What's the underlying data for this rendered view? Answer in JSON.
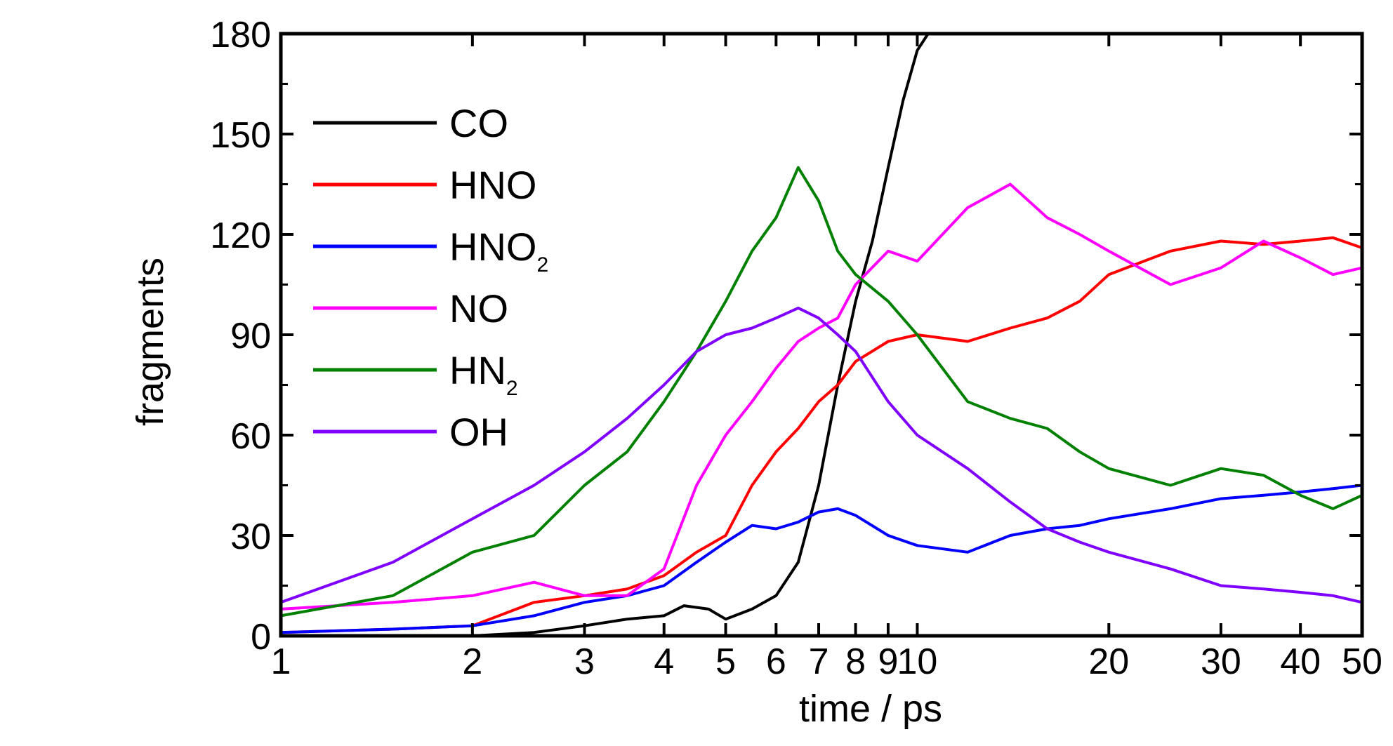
{
  "chart_data": {
    "type": "line",
    "xscale": "log",
    "xlabel": "time / ps",
    "ylabel": "fragments",
    "xlim": [
      1,
      50
    ],
    "ylim": [
      0,
      180
    ],
    "xticks": [
      1,
      2,
      3,
      4,
      5,
      6,
      7,
      8,
      9,
      10,
      20,
      30,
      40,
      50
    ],
    "xtick_labels": [
      "1",
      "2",
      "3",
      "4",
      "5",
      "6",
      "7",
      "8",
      "9",
      "10",
      "20",
      "30",
      "40",
      "50"
    ],
    "yticks": [
      0,
      30,
      60,
      90,
      120,
      150,
      180
    ],
    "ytick_labels": [
      "0",
      "30",
      "60",
      "90",
      "120",
      "150",
      "180"
    ],
    "legend_position": "upper-left",
    "grid": false,
    "series": [
      {
        "name": "CO",
        "label_main": "CO",
        "label_sub": "",
        "color": "#000000",
        "x": [
          1,
          1.5,
          2,
          2.5,
          3,
          3.5,
          4,
          4.3,
          4.7,
          5,
          5.5,
          6,
          6.5,
          7,
          7.5,
          8,
          8.5,
          9,
          9.5,
          10,
          10.4
        ],
        "y": [
          0,
          0,
          0,
          1,
          3,
          5,
          6,
          9,
          8,
          5,
          8,
          12,
          22,
          45,
          75,
          100,
          118,
          140,
          160,
          175,
          180
        ]
      },
      {
        "name": "HNO",
        "label_main": "HNO",
        "label_sub": "",
        "color": "#ff0000",
        "x": [
          1,
          1.5,
          2,
          2.5,
          3,
          3.5,
          4,
          4.5,
          5,
          5.5,
          6,
          6.5,
          7,
          7.5,
          8,
          9,
          10,
          12,
          14,
          16,
          18,
          20,
          25,
          30,
          35,
          40,
          45,
          50
        ],
        "y": [
          1,
          2,
          3,
          10,
          12,
          14,
          18,
          25,
          30,
          45,
          55,
          62,
          70,
          75,
          82,
          88,
          90,
          88,
          92,
          95,
          100,
          108,
          115,
          118,
          117,
          118,
          119,
          116
        ]
      },
      {
        "name": "HNO2",
        "label_main": "HNO",
        "label_sub": "2",
        "color": "#0000ff",
        "x": [
          1,
          1.5,
          2,
          2.5,
          3,
          3.5,
          4,
          4.5,
          5,
          5.5,
          6,
          6.5,
          7,
          7.5,
          8,
          9,
          10,
          12,
          14,
          16,
          18,
          20,
          25,
          30,
          35,
          40,
          45,
          50
        ],
        "y": [
          1,
          2,
          3,
          6,
          10,
          12,
          15,
          22,
          28,
          33,
          32,
          34,
          37,
          38,
          36,
          30,
          27,
          25,
          30,
          32,
          33,
          35,
          38,
          41,
          42,
          43,
          44,
          45
        ]
      },
      {
        "name": "NO",
        "label_main": "NO",
        "label_sub": "",
        "color": "#ff00ff",
        "x": [
          1,
          1.5,
          2,
          2.5,
          3,
          3.5,
          4,
          4.5,
          5,
          5.5,
          6,
          6.5,
          7,
          7.5,
          8,
          9,
          10,
          12,
          14,
          16,
          18,
          20,
          25,
          30,
          35,
          40,
          45,
          50
        ],
        "y": [
          8,
          10,
          12,
          16,
          12,
          12,
          20,
          45,
          60,
          70,
          80,
          88,
          92,
          95,
          105,
          115,
          112,
          128,
          135,
          125,
          120,
          115,
          105,
          110,
          118,
          113,
          108,
          110
        ]
      },
      {
        "name": "HN2",
        "label_main": "HN",
        "label_sub": "2",
        "color": "#008000",
        "x": [
          1,
          1.5,
          2,
          2.5,
          3,
          3.5,
          4,
          4.5,
          5,
          5.5,
          6,
          6.5,
          7,
          7.5,
          8,
          9,
          10,
          12,
          14,
          16,
          18,
          20,
          25,
          30,
          35,
          40,
          45,
          50
        ],
        "y": [
          6,
          12,
          25,
          30,
          45,
          55,
          70,
          85,
          100,
          115,
          125,
          140,
          130,
          115,
          108,
          100,
          90,
          70,
          65,
          62,
          55,
          50,
          45,
          50,
          48,
          42,
          38,
          42
        ]
      },
      {
        "name": "OH",
        "label_main": "OH",
        "label_sub": "",
        "color": "#8000ff",
        "x": [
          1,
          1.5,
          2,
          2.5,
          3,
          3.5,
          4,
          4.5,
          5,
          5.5,
          6,
          6.5,
          7,
          7.5,
          8,
          9,
          10,
          12,
          14,
          16,
          18,
          20,
          25,
          30,
          35,
          40,
          45,
          50
        ],
        "y": [
          10,
          22,
          35,
          45,
          55,
          65,
          75,
          85,
          90,
          92,
          95,
          98,
          95,
          90,
          85,
          70,
          60,
          50,
          40,
          32,
          28,
          25,
          20,
          15,
          14,
          13,
          12,
          10
        ]
      }
    ]
  }
}
